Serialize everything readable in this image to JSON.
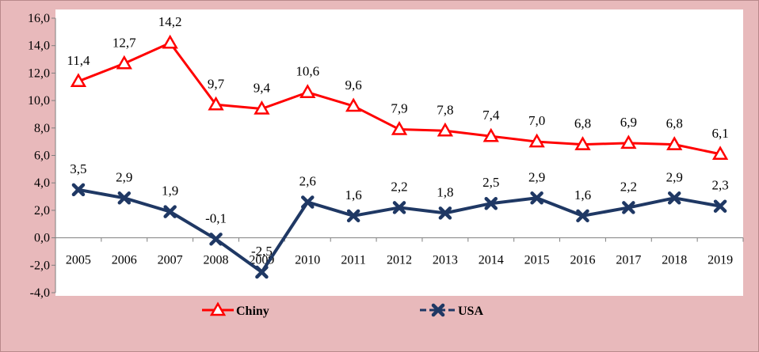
{
  "chart_data": {
    "type": "line",
    "title": "",
    "xlabel": "",
    "ylabel": "",
    "ylim": [
      -4.0,
      16.0
    ],
    "y_ticks": [
      "16,0",
      "14,0",
      "12,0",
      "10,0",
      "8,0",
      "6,0",
      "4,0",
      "2,0",
      "0,0",
      "-2,0",
      "-4,0"
    ],
    "categories": [
      "2005",
      "2006",
      "2007",
      "2008",
      "2009",
      "2010",
      "2011",
      "2012",
      "2013",
      "2014",
      "2015",
      "2016",
      "2017",
      "2018",
      "2019"
    ],
    "series": [
      {
        "name": "Chiny",
        "color": "#ff0000",
        "marker": "triangle",
        "values": [
          11.4,
          12.7,
          14.2,
          9.7,
          9.4,
          10.6,
          9.6,
          7.9,
          7.8,
          7.4,
          7.0,
          6.8,
          6.9,
          6.8,
          6.1
        ],
        "labels": [
          "11,4",
          "12,7",
          "14,2",
          "9,7",
          "9,4",
          "10,6",
          "9,6",
          "7,9",
          "7,8",
          "7,4",
          "7,0",
          "6,8",
          "6,9",
          "6,8",
          "6,1"
        ]
      },
      {
        "name": "USA",
        "color": "#1f3864",
        "marker": "x",
        "values": [
          3.5,
          2.9,
          1.9,
          -0.1,
          -2.5,
          2.6,
          1.6,
          2.2,
          1.8,
          2.5,
          2.9,
          1.6,
          2.2,
          2.9,
          2.3
        ],
        "labels": [
          "3,5",
          "2,9",
          "1,9",
          "-0,1",
          "-2,5",
          "2,6",
          "1,6",
          "2,2",
          "1,8",
          "2,5",
          "2,9",
          "1,6",
          "2,2",
          "2,9",
          "2,3"
        ]
      }
    ],
    "grid": false,
    "legend_position": "bottom"
  }
}
